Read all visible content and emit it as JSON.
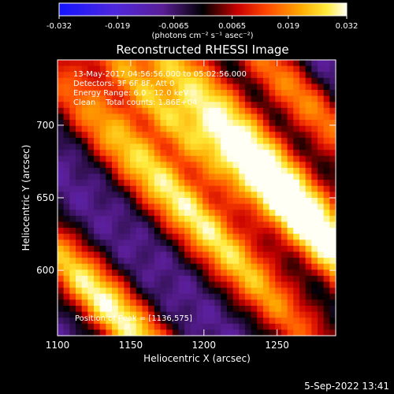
{
  "chart_data": {
    "type": "heatmap",
    "title": "Reconstructed RHESSI Image",
    "xlabel": "Heliocentric X (arcsec)",
    "ylabel": "Heliocentric Y (arcsec)",
    "xlim": [
      1100,
      1290
    ],
    "ylim": [
      555,
      745
    ],
    "x_ticks": [
      "1100",
      "1150",
      "1200",
      "1250"
    ],
    "y_ticks": [
      "600",
      "650",
      "700"
    ],
    "x_tick_values": [
      1100,
      1150,
      1200,
      1250
    ],
    "y_tick_values": [
      600,
      650,
      700
    ],
    "colorbar": {
      "min": -0.032,
      "max": 0.032,
      "ticks": [
        "-0.032",
        "-0.019",
        "-0.0065",
        "0.0065",
        "0.019",
        "0.032"
      ],
      "tick_values": [
        -0.032,
        -0.019,
        -0.0065,
        0.0065,
        0.019,
        0.032
      ],
      "unit_label": "(photons cm⁻² s⁻¹ asec⁻²)"
    },
    "annotations": [
      "13-May-2017 04:56:56.000 to 05:02:56.000",
      "Detectors: 3F 6F 8F, Att 0",
      "Energy Range: 6.0 - 12.0 keV",
      "Clean    Total counts: 1.86E+04"
    ],
    "peak_label": "Position of Peak = [1136,575]",
    "peak": {
      "x": 1136,
      "y": 575
    },
    "ridges": [
      {
        "x0": 1136,
        "y0": 575,
        "peak": 0.032,
        "halfwidth": 13,
        "length": 70
      },
      {
        "x0": 1185,
        "y0": 645,
        "peak": 0.03,
        "halfwidth": 14,
        "length": 120
      },
      {
        "x0": 1230,
        "y0": 690,
        "peak": 0.029,
        "halfwidth": 14,
        "length": 130
      },
      {
        "x0": 1265,
        "y0": 720,
        "peak": 0.02,
        "halfwidth": 11,
        "length": 80
      },
      {
        "x0": 1165,
        "y0": 715,
        "peak": 0.018,
        "halfwidth": 10,
        "length": 70
      },
      {
        "x0": 1270,
        "y0": 625,
        "peak": 0.016,
        "halfwidth": 11,
        "length": 70
      }
    ],
    "background": -0.009,
    "ridge_slope": -1.05
  },
  "timestamp": "5-Sep-2022 13:41"
}
